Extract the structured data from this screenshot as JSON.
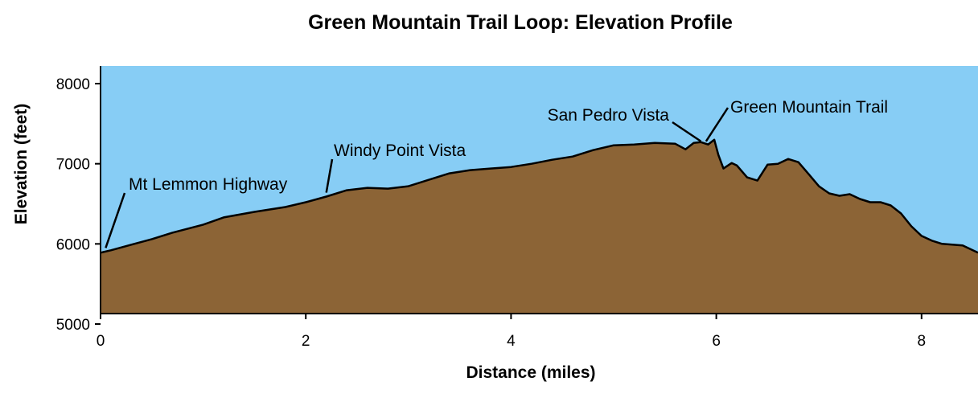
{
  "chart_data": {
    "type": "area",
    "title": "Green Mountain Trail Loop: Elevation Profile",
    "xlabel": "Distance (miles)",
    "ylabel": "Elevation (feet)",
    "xlim": [
      0,
      8.55
    ],
    "ylim": [
      5000,
      8200
    ],
    "x_ticks": [
      0,
      2,
      4,
      6,
      8
    ],
    "y_ticks": [
      5000,
      6000,
      7000,
      8000
    ],
    "x_tick_labels": [
      "0",
      "2",
      "4",
      "6",
      "8"
    ],
    "y_tick_labels": [
      "5000",
      "6000",
      "7000",
      "8000"
    ],
    "grid": false,
    "colors": {
      "sky": "#87cdf5",
      "terrain": "#8c6436",
      "profile_line": "#000000"
    },
    "series": [
      {
        "x": [
          0,
          0.1,
          0.3,
          0.5,
          0.7,
          1.0,
          1.2,
          1.5,
          1.8,
          2.0,
          2.2,
          2.4,
          2.6,
          2.8,
          3.0,
          3.2,
          3.4,
          3.6,
          3.8,
          4.0,
          4.2,
          4.4,
          4.6,
          4.8,
          5.0,
          5.2,
          5.4,
          5.6,
          5.7,
          5.78,
          5.85,
          5.92,
          5.98,
          6.02,
          6.07,
          6.15,
          6.2,
          6.3,
          6.4,
          6.5,
          6.6,
          6.7,
          6.8,
          6.9,
          7.0,
          7.1,
          7.2,
          7.3,
          7.4,
          7.5,
          7.6,
          7.7,
          7.8,
          7.9,
          8.0,
          8.1,
          8.2,
          8.3,
          8.4,
          8.5,
          8.55
        ],
        "y": [
          5890,
          5920,
          5990,
          6060,
          6140,
          6240,
          6330,
          6400,
          6460,
          6520,
          6590,
          6670,
          6700,
          6690,
          6720,
          6800,
          6880,
          6920,
          6940,
          6960,
          7000,
          7050,
          7090,
          7170,
          7230,
          7240,
          7260,
          7250,
          7180,
          7260,
          7270,
          7240,
          7300,
          7110,
          6940,
          7010,
          6980,
          6830,
          6790,
          6990,
          7000,
          7060,
          7020,
          6870,
          6720,
          6630,
          6600,
          6620,
          6560,
          6520,
          6520,
          6480,
          6380,
          6220,
          6100,
          6040,
          6000,
          5990,
          5980,
          5920,
          5890
        ]
      }
    ],
    "annotations": [
      {
        "text": "Mt Lemmon Highway",
        "x": 0.05,
        "y": 5950,
        "text_x": 0.28,
        "text_y": 6750
      },
      {
        "text": "Windy Point Vista",
        "x": 2.2,
        "y": 6640,
        "text_x": 2.3,
        "text_y": 7150
      },
      {
        "text": "San Pedro Vista",
        "x": 5.85,
        "y": 7280,
        "text_x": 5.6,
        "text_y": 7570
      },
      {
        "text": "Green Mountain Trail",
        "x": 5.9,
        "y": 7280,
        "text_x": 6.1,
        "text_y": 7620
      }
    ]
  }
}
